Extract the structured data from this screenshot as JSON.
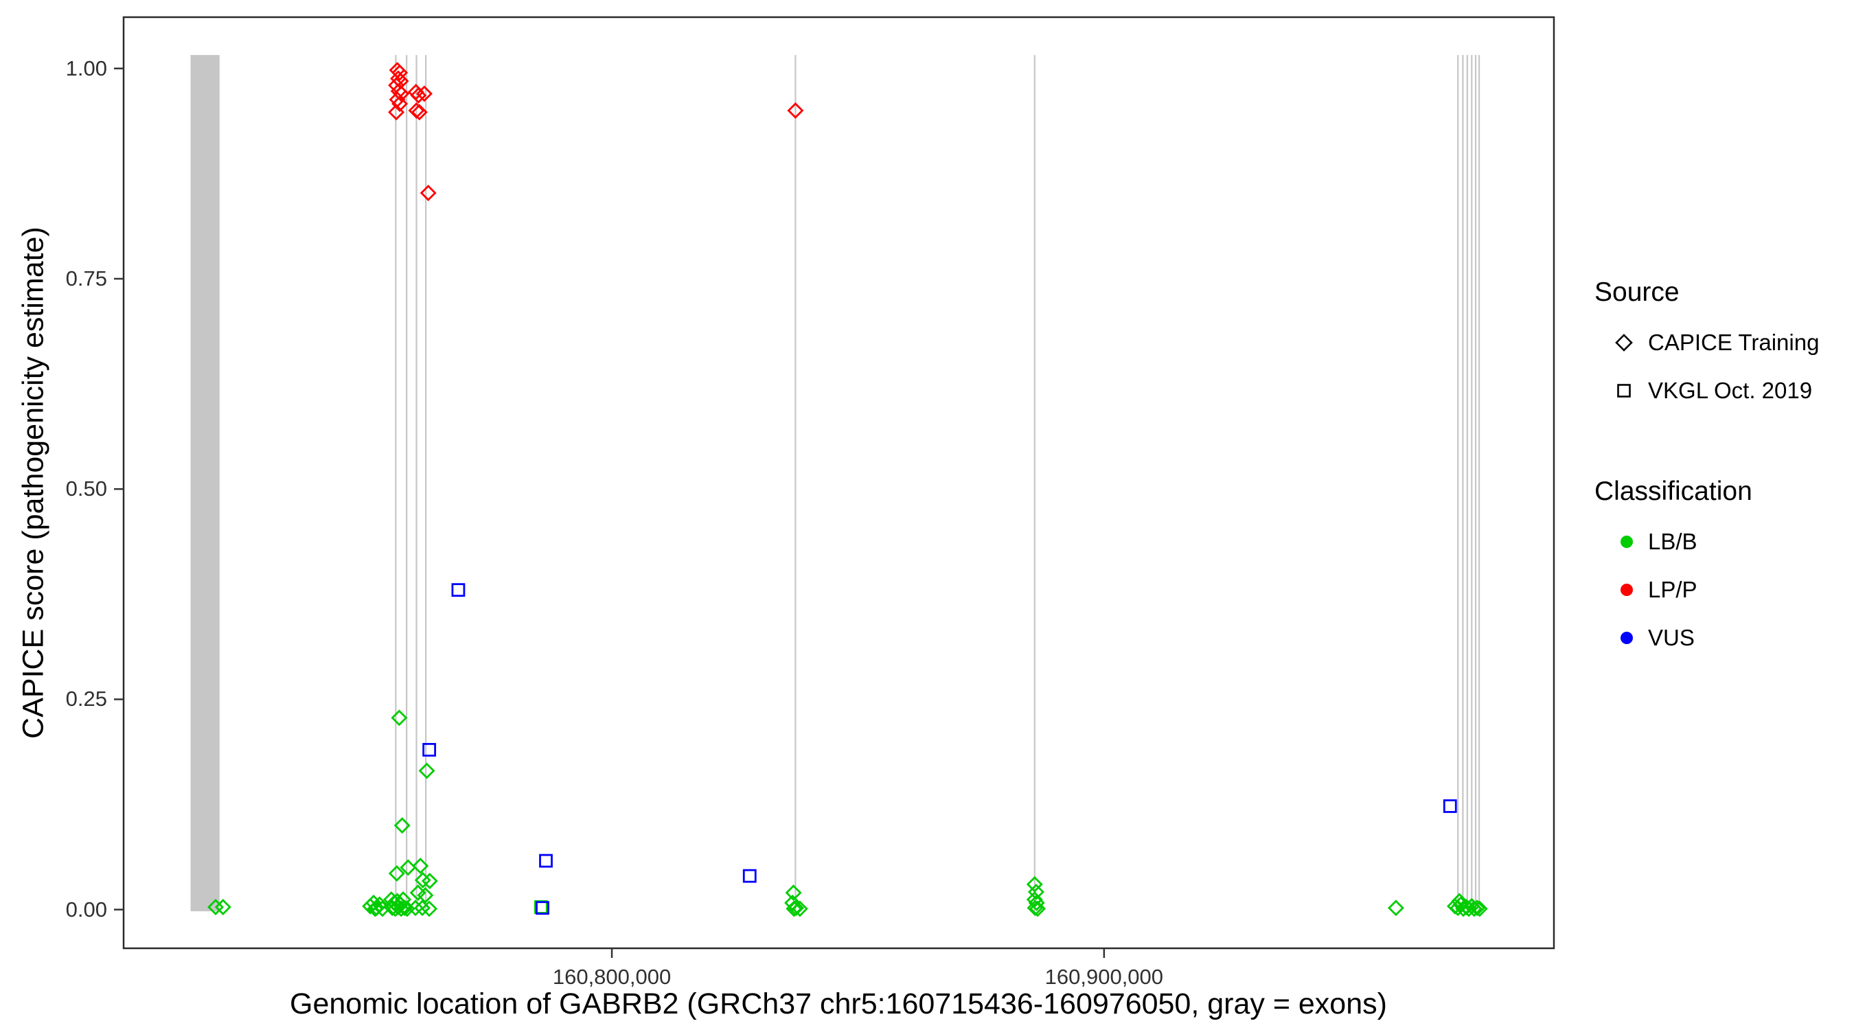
{
  "colors": {
    "background": "#FFFFFF",
    "panel_border": "#2B2B2B",
    "axis_text": "#303030",
    "title_text": "#000000",
    "exon_gray": "#C4C4C4",
    "tick_mark": "#333333",
    "legend_symbol": "#000000"
  },
  "legend": {
    "source": {
      "title": "Source",
      "items": [
        {
          "label": "CAPICE Training",
          "shape": "diamond"
        },
        {
          "label": "VKGL Oct. 2019",
          "shape": "square"
        }
      ]
    },
    "classification": {
      "title": "Classification",
      "items": [
        {
          "label": "LB/B",
          "color": "#00CC00"
        },
        {
          "label": "LP/P",
          "color": "#FF0000"
        },
        {
          "label": "VUS",
          "color": "#0000FF"
        }
      ]
    }
  },
  "chart_data": {
    "type": "scatter",
    "title": "",
    "xlabel": "Genomic location of GABRB2 (GRCh37 chr5:160715436-160976050, gray = exons)",
    "ylabel": "CAPICE score (pathogenicity estimate)",
    "xlim": [
      160700800,
      160991400
    ],
    "ylim": [
      -0.046,
      1.061
    ],
    "x_ticks": [
      {
        "value": 160800000,
        "label": "160,800,000"
      },
      {
        "value": 160900000,
        "label": "160,900,000"
      }
    ],
    "y_ticks": [
      {
        "value": 0.0,
        "label": "0.00"
      },
      {
        "value": 0.25,
        "label": "0.25"
      },
      {
        "value": 0.5,
        "label": "0.50"
      },
      {
        "value": 0.75,
        "label": "0.75"
      },
      {
        "value": 1.0,
        "label": "1.00"
      }
    ],
    "exons": {
      "note": "gray = exons of GABRB2",
      "color": "#C6C6C6",
      "line_top": 1.016,
      "line_bottom": -0.002,
      "band": {
        "start": 160714400,
        "end": 160720300
      },
      "lines": [
        160756100,
        160758300,
        160760300,
        160762200,
        160837300,
        160885900,
        160971900,
        160972900,
        160973800,
        160974700,
        160975500,
        160976200
      ]
    },
    "series": [
      {
        "name": "LB/B (CAPICE Training)",
        "source": "CAPICE Training",
        "classification": "LB/B",
        "shape": "diamond",
        "color": "#00CC00",
        "points": [
          [
            160719500,
            0.003
          ],
          [
            160721000,
            0.003
          ],
          [
            160750900,
            0.004
          ],
          [
            160751600,
            0.008
          ],
          [
            160752200,
            0.002
          ],
          [
            160752800,
            0.006
          ],
          [
            160753400,
            0.001
          ],
          [
            160751900,
            0.001
          ],
          [
            160756800,
            0.228
          ],
          [
            160757400,
            0.1
          ],
          [
            160756300,
            0.043
          ],
          [
            160758600,
            0.05
          ],
          [
            160761100,
            0.052
          ],
          [
            160762400,
            0.165
          ],
          [
            160761600,
            0.035
          ],
          [
            160763000,
            0.034
          ],
          [
            160760600,
            0.02
          ],
          [
            160762100,
            0.017
          ],
          [
            160755200,
            0.012
          ],
          [
            160755800,
            0.008
          ],
          [
            160756400,
            0.01
          ],
          [
            160757000,
            0.006
          ],
          [
            160757600,
            0.012
          ],
          [
            160755400,
            0.002
          ],
          [
            160756000,
            0.001
          ],
          [
            160756600,
            0.003
          ],
          [
            160757200,
            0.001
          ],
          [
            160757900,
            0.002
          ],
          [
            160758400,
            0.001
          ],
          [
            160760100,
            0.002
          ],
          [
            160761500,
            0.002
          ],
          [
            160762900,
            0.001
          ],
          [
            160836900,
            0.02
          ],
          [
            160836700,
            0.008
          ],
          [
            160837400,
            0.002
          ],
          [
            160838200,
            0.001
          ],
          [
            160837000,
            0.001
          ],
          [
            160885900,
            0.03
          ],
          [
            160886200,
            0.021
          ],
          [
            160885900,
            0.012
          ],
          [
            160886300,
            0.008
          ],
          [
            160886000,
            0.002
          ],
          [
            160886500,
            0.001
          ],
          [
            160959300,
            0.002
          ],
          [
            160971300,
            0.004
          ],
          [
            160971900,
            0.002
          ],
          [
            160972500,
            0.006
          ],
          [
            160973000,
            0.001
          ],
          [
            160973600,
            0.003
          ],
          [
            160974100,
            0.001
          ],
          [
            160974700,
            0.004
          ],
          [
            160975200,
            0.001
          ],
          [
            160975800,
            0.002
          ],
          [
            160976300,
            0.001
          ],
          [
            160972200,
            0.01
          ]
        ]
      },
      {
        "name": "LB/B (VKGL Oct. 2019)",
        "source": "VKGL Oct. 2019",
        "classification": "LB/B",
        "shape": "square",
        "color": "#00CC00",
        "points": [
          [
            160785600,
            0.003
          ]
        ]
      },
      {
        "name": "VUS (VKGL Oct. 2019)",
        "source": "VKGL Oct. 2019",
        "classification": "VUS",
        "shape": "square",
        "color": "#0000FF",
        "points": [
          [
            160768800,
            0.38
          ],
          [
            160762900,
            0.19
          ],
          [
            160786600,
            0.058
          ],
          [
            160828000,
            0.04
          ],
          [
            160970300,
            0.123
          ],
          [
            160785900,
            0.002
          ]
        ]
      },
      {
        "name": "LP/P (CAPICE Training)",
        "source": "CAPICE Training",
        "classification": "LP/P",
        "shape": "diamond",
        "color": "#FF0000",
        "points": [
          [
            160756400,
            0.998
          ],
          [
            160756900,
            0.995
          ],
          [
            160756600,
            0.988
          ],
          [
            160757100,
            0.985
          ],
          [
            160756200,
            0.98
          ],
          [
            160756700,
            0.973
          ],
          [
            160757200,
            0.97
          ],
          [
            160756400,
            0.963
          ],
          [
            160756900,
            0.958
          ],
          [
            160756200,
            0.948
          ],
          [
            160760200,
            0.972
          ],
          [
            160760700,
            0.968
          ],
          [
            160761900,
            0.97
          ],
          [
            160760300,
            0.95
          ],
          [
            160760900,
            0.948
          ],
          [
            160762700,
            0.852
          ],
          [
            160837300,
            0.95
          ]
        ]
      }
    ]
  }
}
